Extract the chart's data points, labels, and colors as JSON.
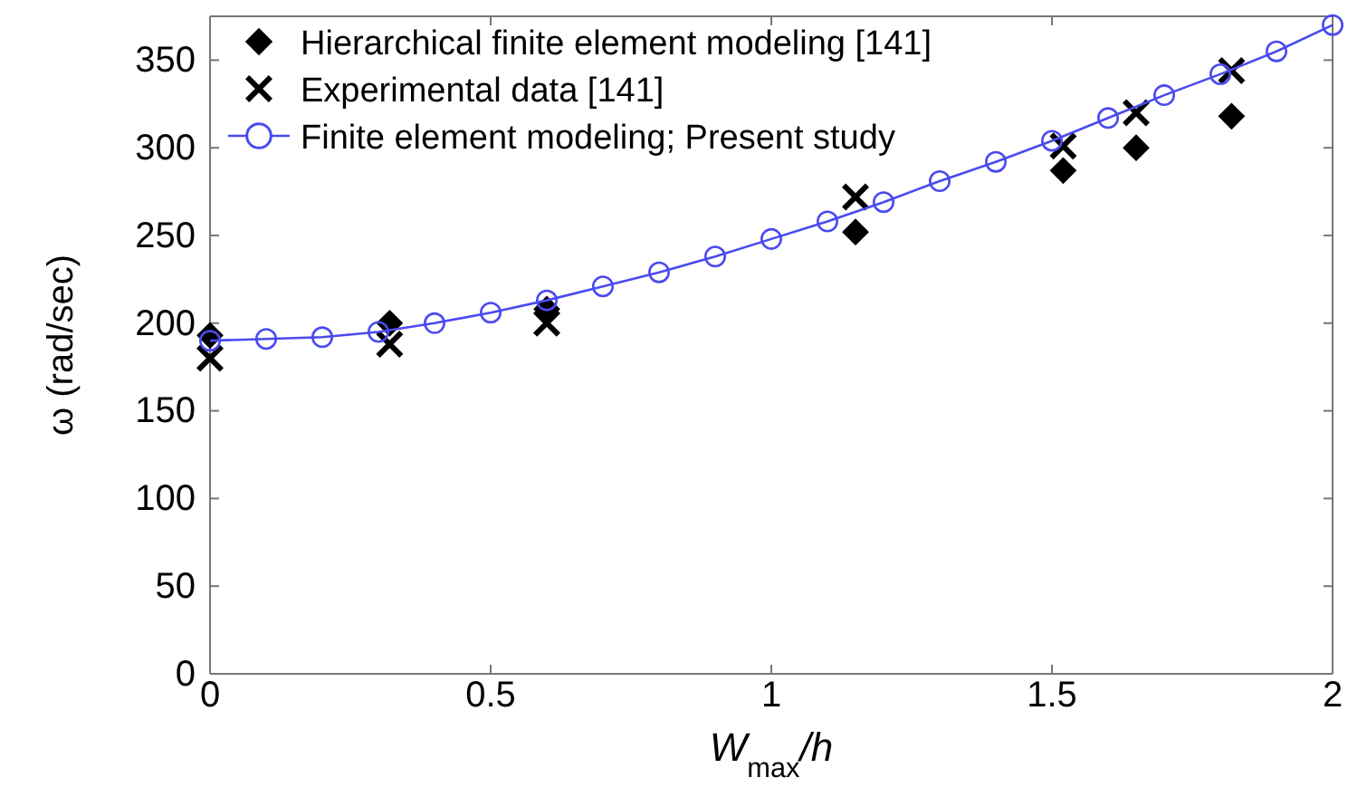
{
  "chart_data": {
    "type": "scatter",
    "xlabel": "W$_{max}$/h",
    "ylabel": "ω (rad/sec)",
    "xlim": [
      0,
      2
    ],
    "xticks": [
      0,
      0.5,
      1,
      1.5,
      2
    ],
    "ylim": [
      0,
      375
    ],
    "yticks": [
      0,
      50,
      100,
      150,
      200,
      250,
      300,
      350
    ],
    "grid": false,
    "legend": "top left",
    "series": [
      {
        "name": "Hierarchical finite element modeling [141]",
        "marker": "diamond",
        "color": "#000000",
        "x": [
          0,
          0.32,
          0.6,
          1.15,
          1.52,
          1.65,
          1.82
        ],
        "values": [
          193,
          200,
          208,
          252,
          287,
          300,
          318
        ]
      },
      {
        "name": "Experimental data [141]",
        "marker": "cross",
        "color": "#000000",
        "x": [
          0,
          0.32,
          0.6,
          1.15,
          1.52,
          1.65,
          1.82
        ],
        "values": [
          180,
          188,
          200,
          272,
          301,
          320,
          344
        ]
      },
      {
        "name": "Finite element modeling; Present study",
        "type": "line",
        "marker": "circle",
        "color": "#4a4af0",
        "x": [
          0,
          0.1,
          0.2,
          0.3,
          0.4,
          0.5,
          0.6,
          0.7,
          0.8,
          0.9,
          1.0,
          1.1,
          1.2,
          1.3,
          1.4,
          1.5,
          1.6,
          1.7,
          1.8,
          1.9,
          2.0
        ],
        "values": [
          190,
          191,
          192,
          195,
          200,
          206,
          213,
          221,
          229,
          238,
          248,
          258,
          269,
          281,
          292,
          304,
          317,
          330,
          342,
          355,
          370
        ]
      }
    ]
  }
}
